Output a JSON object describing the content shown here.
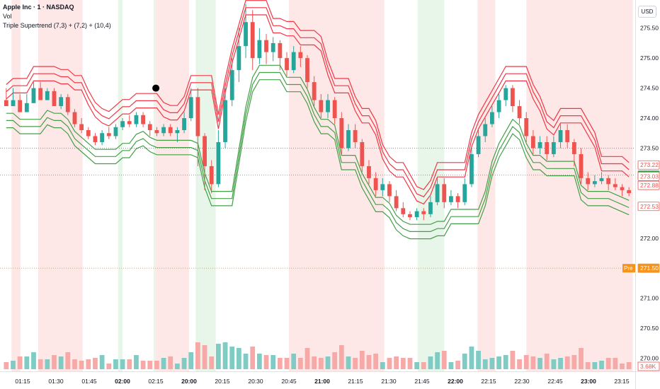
{
  "legend": {
    "title": "Apple Inc · 1 · NASDAQ",
    "volume_label": "Vol",
    "indicator_label": "Triple Supertrend (7,3) + (7,2) + (10,4)"
  },
  "currency": "USD",
  "price_axis": {
    "ticks": [
      "275.50",
      "275.00",
      "274.50",
      "274.00",
      "273.50",
      "273.00",
      "272.50",
      "272.00",
      "271.50",
      "271.00",
      "270.50",
      "270.00"
    ],
    "tick_values": [
      275.5,
      275.0,
      274.5,
      274.0,
      273.5,
      273.0,
      272.5,
      272.0,
      271.5,
      271.0,
      270.5,
      270.0
    ]
  },
  "price_labels": [
    {
      "text": "273.22",
      "value": 273.22,
      "style": "outline-red"
    },
    {
      "text": "273.05",
      "value": 273.05,
      "style": "fill-green"
    },
    {
      "text": "273.03",
      "value": 273.03,
      "style": "outline-red"
    },
    {
      "text": "272.88",
      "value": 272.88,
      "style": "outline-red"
    },
    {
      "text": "272.53",
      "value": 272.53,
      "style": "outline-red"
    },
    {
      "text": "271.50",
      "value": 271.5,
      "style": "fill-orange",
      "tag": "Pre"
    }
  ],
  "volume_label": {
    "text": "3.68K"
  },
  "time_axis": {
    "labels": [
      "01:15",
      "01:30",
      "01:45",
      "02:00",
      "02:15",
      "20:00",
      "20:15",
      "20:30",
      "20:45",
      "21:00",
      "21:15",
      "21:30",
      "21:45",
      "22:00",
      "22:15",
      "22:30",
      "22:45",
      "23:00",
      "23:15"
    ],
    "bold": [
      "02:00",
      "20:00",
      "21:00",
      "22:00",
      "23:00"
    ]
  },
  "colors": {
    "up": "#26a69a",
    "down": "#ef5350",
    "bg_bear": "#fde7e7",
    "bg_bull": "#e8f5e9",
    "st_bear": "#f23645",
    "st_bull": "#43a047",
    "pre_line": "#f7931a",
    "volume_up": "#80cbc4",
    "volume_down": "#f7a9a7"
  },
  "chart_data": {
    "type": "candlestick",
    "symbol": "Apple Inc · 1 · NASDAQ",
    "ylim": [
      269.9,
      275.85
    ],
    "ref_lines": [
      {
        "value": 273.5,
        "color": "#ef5350",
        "style": "dotted"
      },
      {
        "value": 273.05,
        "color": "#43a047",
        "style": "dotted"
      },
      {
        "value": 271.5,
        "color": "#f7931a",
        "style": "dotted"
      }
    ],
    "background_regions": [
      {
        "from": "01:10",
        "to": "01:14",
        "trend": "bear"
      },
      {
        "from": "01:22",
        "to": "01:42",
        "trend": "bear"
      },
      {
        "from": "01:58",
        "to": "02:00",
        "trend": "bull"
      },
      {
        "from": "02:14",
        "to": "02:17",
        "trend": "bull"
      },
      {
        "from": "02:17",
        "to": "20:00",
        "trend": "bear"
      },
      {
        "from": "20:03",
        "to": "20:12",
        "trend": "bull"
      },
      {
        "from": "20:45",
        "to": "21:28",
        "trend": "bear"
      },
      {
        "from": "21:43",
        "to": "21:55",
        "trend": "bull"
      },
      {
        "from": "22:10",
        "to": "22:18",
        "trend": "bear"
      },
      {
        "from": "22:32",
        "to": "23:20",
        "trend": "bear"
      }
    ],
    "candles": {
      "time_index_start": "01:10",
      "points": [
        [
          274.3,
          274.2,
          274.5,
          274.3
        ],
        [
          274.2,
          274.3,
          274.5,
          274.2
        ],
        [
          274.3,
          274.1,
          274.4,
          274.3
        ],
        [
          274.1,
          274.25,
          274.4,
          274.1
        ],
        [
          274.25,
          274.5,
          274.6,
          274.25
        ],
        [
          274.5,
          274.3,
          274.6,
          274.3
        ],
        [
          274.3,
          274.45,
          274.5,
          274.3
        ],
        [
          274.45,
          274.2,
          274.5,
          274.2
        ],
        [
          274.2,
          274.35,
          274.4,
          274.15
        ],
        [
          274.35,
          274.1,
          274.4,
          274.05
        ],
        [
          274.1,
          273.9,
          274.15,
          273.85
        ],
        [
          273.9,
          273.8,
          274.0,
          273.75
        ],
        [
          273.8,
          273.7,
          273.85,
          273.65
        ],
        [
          273.7,
          273.6,
          273.75,
          273.55
        ],
        [
          273.6,
          273.75,
          273.8,
          273.55
        ],
        [
          273.75,
          273.7,
          273.85,
          273.65
        ],
        [
          273.7,
          273.85,
          273.9,
          273.65
        ],
        [
          273.85,
          273.95,
          274.0,
          273.8
        ],
        [
          273.95,
          273.9,
          274.05,
          273.85
        ],
        [
          273.9,
          274.05,
          274.1,
          273.85
        ],
        [
          274.05,
          273.9,
          274.1,
          273.85
        ],
        [
          273.9,
          273.8,
          273.95,
          273.7
        ],
        [
          273.8,
          273.75,
          273.85,
          273.7
        ],
        [
          273.75,
          273.85,
          273.9,
          273.7
        ],
        [
          273.85,
          273.75,
          273.9,
          273.7
        ],
        [
          273.75,
          273.8,
          273.85,
          273.6
        ],
        [
          273.8,
          274.0,
          274.1,
          273.75
        ],
        [
          274.0,
          274.35,
          274.5,
          273.95
        ],
        [
          274.35,
          273.7,
          274.5,
          273.2
        ],
        [
          273.7,
          273.2,
          273.75,
          272.8
        ],
        [
          273.2,
          272.9,
          273.3,
          272.75
        ],
        [
          272.9,
          273.6,
          273.8,
          272.85
        ],
        [
          273.6,
          274.3,
          274.5,
          273.5
        ],
        [
          274.3,
          274.8,
          275.0,
          274.2
        ],
        [
          274.8,
          275.2,
          275.5,
          274.6
        ],
        [
          275.2,
          275.6,
          275.9,
          275.0
        ],
        [
          275.6,
          275.0,
          275.8,
          274.8
        ],
        [
          275.0,
          275.3,
          275.5,
          274.9
        ],
        [
          275.3,
          275.1,
          275.4,
          274.9
        ],
        [
          275.1,
          275.25,
          275.35,
          274.95
        ],
        [
          275.25,
          275.0,
          275.3,
          274.8
        ],
        [
          275.0,
          274.8,
          275.1,
          274.7
        ],
        [
          274.8,
          275.1,
          275.2,
          274.75
        ],
        [
          275.1,
          275.0,
          275.2,
          274.85
        ],
        [
          275.0,
          274.6,
          275.05,
          274.5
        ],
        [
          274.6,
          274.3,
          274.7,
          274.2
        ],
        [
          274.3,
          274.1,
          274.4,
          274.0
        ],
        [
          274.1,
          274.3,
          274.4,
          274.0
        ],
        [
          274.3,
          274.0,
          274.35,
          273.9
        ],
        [
          274.0,
          273.5,
          274.1,
          273.4
        ],
        [
          273.5,
          273.8,
          273.9,
          273.45
        ],
        [
          273.8,
          273.6,
          273.9,
          273.5
        ],
        [
          273.6,
          273.2,
          273.65,
          273.1
        ],
        [
          273.2,
          273.0,
          273.3,
          272.9
        ],
        [
          273.0,
          272.8,
          273.1,
          272.7
        ],
        [
          272.8,
          272.9,
          273.0,
          272.7
        ],
        [
          272.9,
          272.7,
          272.95,
          272.6
        ],
        [
          272.7,
          272.5,
          272.8,
          272.45
        ],
        [
          272.5,
          272.4,
          272.6,
          272.35
        ],
        [
          272.4,
          272.35,
          272.45,
          272.3
        ],
        [
          272.35,
          272.45,
          272.5,
          272.3
        ],
        [
          272.45,
          272.4,
          272.5,
          272.3
        ],
        [
          272.4,
          272.6,
          272.7,
          272.35
        ],
        [
          272.6,
          272.9,
          273.0,
          272.55
        ],
        [
          272.9,
          272.6,
          273.0,
          272.5
        ],
        [
          272.6,
          272.7,
          272.8,
          272.55
        ],
        [
          272.7,
          272.6,
          272.75,
          272.5
        ],
        [
          272.6,
          272.9,
          273.0,
          272.55
        ],
        [
          272.9,
          273.4,
          273.5,
          272.85
        ],
        [
          273.4,
          273.7,
          273.8,
          273.35
        ],
        [
          273.7,
          273.9,
          274.0,
          273.6
        ],
        [
          273.9,
          274.1,
          274.2,
          273.85
        ],
        [
          274.1,
          274.3,
          274.4,
          274.0
        ],
        [
          274.3,
          274.5,
          274.55,
          274.2
        ],
        [
          274.5,
          274.2,
          274.55,
          274.1
        ],
        [
          274.2,
          274.0,
          274.3,
          273.9
        ],
        [
          274.0,
          273.7,
          274.1,
          273.6
        ],
        [
          273.7,
          273.5,
          273.8,
          273.4
        ],
        [
          273.5,
          273.6,
          273.7,
          273.4
        ],
        [
          273.6,
          273.4,
          273.7,
          273.3
        ],
        [
          273.4,
          273.6,
          273.7,
          273.35
        ],
        [
          273.6,
          273.8,
          273.9,
          273.5
        ],
        [
          273.8,
          273.6,
          273.9,
          273.5
        ],
        [
          273.6,
          273.4,
          273.65,
          273.2
        ],
        [
          273.4,
          273.0,
          273.5,
          272.9
        ],
        [
          273.0,
          272.9,
          273.1,
          272.8
        ],
        [
          272.9,
          272.95,
          273.05,
          272.85
        ],
        [
          272.95,
          273.0,
          273.1,
          272.9
        ],
        [
          273.0,
          272.9,
          273.05,
          272.8
        ],
        [
          272.9,
          272.85,
          273.0,
          272.8
        ],
        [
          272.85,
          272.8,
          272.9,
          272.7
        ],
        [
          272.8,
          272.75,
          272.85,
          272.7
        ]
      ]
    },
    "series": [
      {
        "name": "(7,3)",
        "trend": "bear",
        "color": "#f23645"
      },
      {
        "name": "(7,2)",
        "trend": "bear",
        "color": "#f23645"
      },
      {
        "name": "(10,4)",
        "trend": "bear",
        "color": "#f23645"
      }
    ],
    "marker": {
      "shape": "circle",
      "color": "#000000",
      "time": "02:17",
      "value": 274.5
    }
  }
}
